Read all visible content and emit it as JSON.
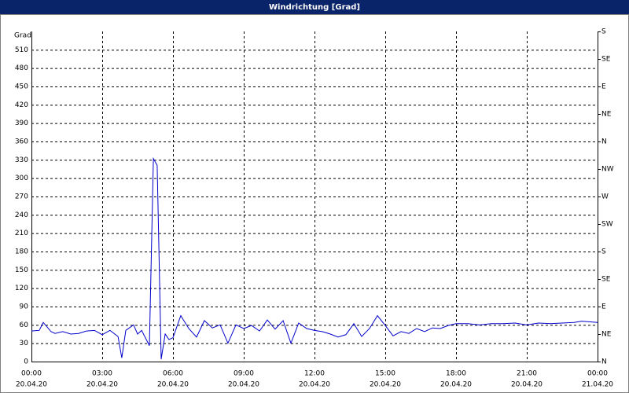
{
  "chart_data": {
    "type": "line",
    "title": "Windrichtung [Grad]",
    "y_label": "Grad",
    "x": [
      0,
      0.33,
      0.5,
      0.83,
      1.0,
      1.33,
      1.67,
      2.0,
      2.33,
      2.67,
      3.0,
      3.33,
      3.67,
      3.83,
      4.0,
      4.33,
      4.5,
      4.67,
      5.0,
      5.17,
      5.33,
      5.5,
      5.67,
      5.83,
      6.0,
      6.33,
      6.67,
      7.0,
      7.33,
      7.67,
      8.0,
      8.33,
      8.67,
      9.0,
      9.33,
      9.67,
      10.0,
      10.33,
      10.67,
      11.0,
      11.33,
      11.67,
      12.0,
      12.33,
      12.67,
      13.0,
      13.33,
      13.67,
      14.0,
      14.33,
      14.67,
      15.0,
      15.33,
      15.67,
      16.0,
      16.33,
      16.67,
      17.0,
      17.33,
      17.67,
      18.0,
      18.5,
      19.0,
      19.5,
      20.0,
      20.5,
      21.0,
      21.5,
      22.0,
      22.5,
      23.0,
      23.33,
      24.0
    ],
    "series": [
      {
        "name": "Windrichtung",
        "color": "#0000cc",
        "values": [
          50,
          51,
          64,
          49,
          46,
          49,
          45,
          46,
          50,
          51,
          44,
          51,
          41,
          6,
          51,
          60,
          45,
          51,
          26,
          332,
          321,
          4,
          45,
          36,
          39,
          75,
          54,
          40,
          67,
          55,
          60,
          30,
          60,
          54,
          59,
          50,
          68,
          53,
          67,
          30,
          63,
          54,
          51,
          49,
          45,
          40,
          44,
          62,
          41,
          54,
          75,
          59,
          42,
          49,
          46,
          54,
          49,
          55,
          54,
          59,
          62,
          62,
          60,
          62,
          62,
          63,
          60,
          63,
          62,
          63,
          64,
          66,
          64
        ]
      }
    ],
    "xlim": [
      0,
      24
    ],
    "xticks": [
      {
        "value": 0,
        "label": "00:00",
        "date": "20.04.20"
      },
      {
        "value": 3,
        "label": "03:00",
        "date": "20.04.20"
      },
      {
        "value": 6,
        "label": "06:00",
        "date": "20.04.20"
      },
      {
        "value": 9,
        "label": "09:00",
        "date": "20.04.20"
      },
      {
        "value": 12,
        "label": "12:00",
        "date": "20.04.20"
      },
      {
        "value": 15,
        "label": "15:00",
        "date": "20.04.20"
      },
      {
        "value": 18,
        "label": "18:00",
        "date": "20.04.20"
      },
      {
        "value": 21,
        "label": "21:00",
        "date": "20.04.20"
      },
      {
        "value": 24,
        "label": "00:00",
        "date": "21.04.20"
      }
    ],
    "ylim": [
      0,
      540
    ],
    "yticks": [
      0,
      30,
      60,
      90,
      120,
      150,
      180,
      210,
      240,
      270,
      300,
      330,
      360,
      390,
      420,
      450,
      480,
      510
    ],
    "y2lim": [
      0,
      540
    ],
    "y2ticks": [
      {
        "value": 0,
        "label": "N"
      },
      {
        "value": 45,
        "label": "NE"
      },
      {
        "value": 90,
        "label": "E"
      },
      {
        "value": 135,
        "label": "SE"
      },
      {
        "value": 180,
        "label": "S"
      },
      {
        "value": 225,
        "label": "SW"
      },
      {
        "value": 270,
        "label": "W"
      },
      {
        "value": 315,
        "label": "NW"
      },
      {
        "value": 360,
        "label": "N"
      },
      {
        "value": 405,
        "label": "NE"
      },
      {
        "value": 450,
        "label": "E"
      },
      {
        "value": 495,
        "label": "SE"
      },
      {
        "value": 540,
        "label": "S"
      }
    ],
    "grid": true
  }
}
